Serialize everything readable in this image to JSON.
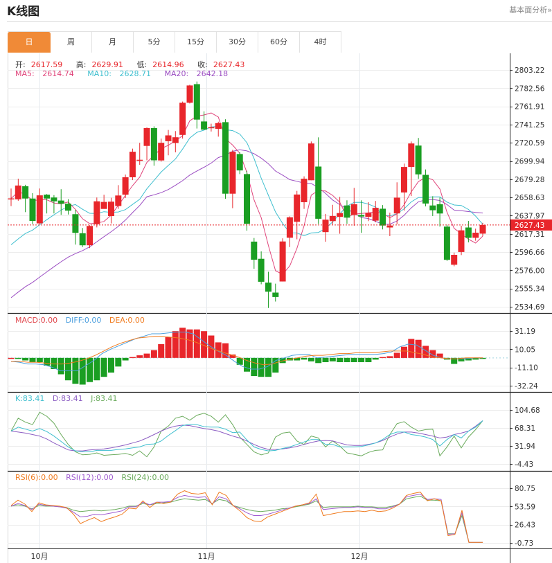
{
  "header": {
    "title": "K线图",
    "fundamental_link": "基本面分析»"
  },
  "tabs": [
    {
      "label": "日",
      "active": true
    },
    {
      "label": "周",
      "active": false
    },
    {
      "label": "月",
      "active": false
    },
    {
      "label": "5分",
      "active": false
    },
    {
      "label": "15分",
      "active": false
    },
    {
      "label": "30分",
      "active": false
    },
    {
      "label": "60分",
      "active": false
    },
    {
      "label": "4时",
      "active": false
    }
  ],
  "ohlc": {
    "open_label": "开:",
    "open": "2617.59",
    "high_label": "高:",
    "high": "2629.91",
    "low_label": "低:",
    "low": "2614.96",
    "close_label": "收:",
    "close": "2627.43"
  },
  "ma_legend": {
    "ma5_label": "MA5:",
    "ma5": "2614.74",
    "ma10_label": "MA10:",
    "ma10": "2628.71",
    "ma20_label": "MA20:",
    "ma20": "2642.18"
  },
  "macd_legend": {
    "macd": "MACD:0.00",
    "diff": "DIFF:0.00",
    "dea": "DEA:0.00"
  },
  "kdj_legend": {
    "k": "K:83.41",
    "d": "D:83.41",
    "j": "J:83.41"
  },
  "rsi_legend": {
    "rsi6": "RSI(6):0.00",
    "rsi12": "RSI(12):0.00",
    "rsi24": "RSI(24):0.00"
  },
  "colors": {
    "up": "#e8262b",
    "down": "#1a9e22",
    "ma5": "#e0457b",
    "ma10": "#3fbfcf",
    "ma20": "#9b4dc2",
    "macd_label": "#e0454b",
    "diff": "#4a9ede",
    "dea": "#f07b1f",
    "k": "#3fbfcf",
    "d": "#8b5cc2",
    "j": "#6aab5c",
    "rsi6": "#f07b1f",
    "rsi12": "#a05cd0",
    "rsi24": "#6aab5c",
    "tab_active": "#f08a37",
    "price_tag": "#e8262b"
  },
  "chart_data": [
    {
      "type": "candlestick",
      "title": "K线图 (日)",
      "xlabel": "",
      "ylabel": "",
      "x_ticks": [
        "10月",
        "11月",
        "12月"
      ],
      "y_ticks": [
        2803.22,
        2782.56,
        2761.91,
        2741.25,
        2720.59,
        2699.94,
        2679.28,
        2658.63,
        2637.97,
        2617.31,
        2596.66,
        2576.0,
        2555.34,
        2534.69
      ],
      "ylim": [
        2528,
        2810
      ],
      "current_price": 2627.43,
      "candles": [
        [
          2656.6,
          2657.6,
          2668.8,
          2648.8
        ],
        [
          2656.6,
          2672.2,
          2679.9,
          2654.9
        ],
        [
          2671.4,
          2657.4,
          2673.0,
          2642.0
        ],
        [
          2657.4,
          2632.0,
          2663.5,
          2628.4
        ],
        [
          2629.2,
          2661.0,
          2668.8,
          2628.4
        ],
        [
          2661.8,
          2657.4,
          2662.5,
          2640.5
        ],
        [
          2658.6,
          2654.3,
          2661.3,
          2640.5
        ],
        [
          2655.1,
          2651.6,
          2668.0,
          2638.9
        ],
        [
          2651.6,
          2643.7,
          2656.7,
          2639.3
        ],
        [
          2639.7,
          2618.5,
          2644.5,
          2605.2
        ],
        [
          2618.1,
          2604.4,
          2624.0,
          2602.4
        ],
        [
          2604.4,
          2626.3,
          2627.1,
          2601.2
        ],
        [
          2628.3,
          2654.3,
          2658.6,
          2624.7
        ],
        [
          2645.7,
          2653.6,
          2661.7,
          2646.9
        ],
        [
          2637.6,
          2653.9,
          2658.3,
          2629.2
        ],
        [
          2649.0,
          2660.9,
          2672.6,
          2645.7
        ],
        [
          2661.8,
          2681.5,
          2684.6,
          2658.0
        ],
        [
          2681.5,
          2710.5,
          2714.0,
          2678.3
        ],
        [
          2701.4,
          2701.4,
          2720.6,
          2695.7
        ],
        [
          2717.1,
          2737.3,
          2738.1,
          2700.8
        ],
        [
          2737.3,
          2700.8,
          2739.3,
          2694.6
        ],
        [
          2700.6,
          2720.6,
          2725.4,
          2699.3
        ],
        [
          2722.4,
          2729.0,
          2735.2,
          2706.4
        ],
        [
          2720.4,
          2726.9,
          2733.9,
          2709.8
        ],
        [
          2729.6,
          2766.0,
          2767.4,
          2725.4
        ],
        [
          2766.0,
          2785.6,
          2786.4,
          2765.2
        ],
        [
          2787.1,
          2746.9,
          2790.1,
          2736.8
        ],
        [
          2744.8,
          2735.5,
          2756.3,
          2735.3
        ],
        [
          2738.3,
          2738.3,
          2742.3,
          2733.4
        ],
        [
          2736.5,
          2742.9,
          2744.5,
          2727.6
        ],
        [
          2744.0,
          2662.9,
          2747.3,
          2657.2
        ],
        [
          2662.9,
          2710.5,
          2712.6,
          2646.5
        ],
        [
          2707.9,
          2689.3,
          2709.8,
          2685.1
        ],
        [
          2685.1,
          2628.7,
          2688.8,
          2621.0
        ],
        [
          2608.6,
          2588.1,
          2612.7,
          2577.7
        ],
        [
          2589.1,
          2563.0,
          2597.5,
          2560.2
        ],
        [
          2562.1,
          2551.8,
          2574.4,
          2533.3
        ],
        [
          2550.8,
          2545.8,
          2560.9,
          2540.6
        ],
        [
          2563.3,
          2608.7,
          2612.3,
          2563.3
        ],
        [
          2612.9,
          2636.1,
          2637.2,
          2602.4
        ],
        [
          2631.1,
          2662.0,
          2666.1,
          2611.2
        ],
        [
          2653.3,
          2679.9,
          2682.6,
          2645.7
        ],
        [
          2678.1,
          2719.8,
          2722.1,
          2678.1
        ],
        [
          2693.7,
          2634.5,
          2726.8,
          2628.5
        ],
        [
          2619.4,
          2633.5,
          2640.0,
          2608.5
        ],
        [
          2631.8,
          2637.6,
          2650.3,
          2628.0
        ],
        [
          2636.6,
          2640.9,
          2659.3,
          2617.5
        ],
        [
          2649.6,
          2635.8,
          2655.4,
          2628.7
        ],
        [
          2638.8,
          2651.0,
          2669.5,
          2626.6
        ],
        [
          2638.8,
          2637.0,
          2655.4,
          2618.5
        ],
        [
          2636.6,
          2641.1,
          2653.3,
          2631.8
        ],
        [
          2632.4,
          2646.9,
          2654.7,
          2630.5
        ],
        [
          2645.9,
          2626.8,
          2650.0,
          2622.4
        ],
        [
          2624.6,
          2626.8,
          2641.4,
          2614.8
        ],
        [
          2640.5,
          2658.4,
          2675.8,
          2628.2
        ],
        [
          2664.3,
          2693.2,
          2697.0,
          2643.7
        ],
        [
          2693.2,
          2719.8,
          2722.1,
          2660.2
        ],
        [
          2717.5,
          2684.8,
          2726.1,
          2679.7
        ],
        [
          2684.3,
          2651.8,
          2690.4,
          2648.5
        ],
        [
          2649.6,
          2644.2,
          2660.0,
          2637.6
        ],
        [
          2651.0,
          2640.5,
          2658.6,
          2625.6
        ],
        [
          2625.6,
          2587.9,
          2627.8,
          2586.7
        ],
        [
          2582.4,
          2593.6,
          2596.1,
          2580.6
        ],
        [
          2596.8,
          2621.4,
          2626.6,
          2593.3
        ],
        [
          2624.6,
          2612.9,
          2632.0,
          2607.7
        ],
        [
          2612.9,
          2618.7,
          2623.3,
          2609.6
        ],
        [
          2617.6,
          2627.4,
          2629.9,
          2614.9
        ]
      ],
      "series": [
        {
          "name": "MA5",
          "values_px_note": "rendered"
        },
        {
          "name": "MA10"
        },
        {
          "name": "MA20"
        }
      ],
      "legend": [
        "MA5: 2614.74",
        "MA10: 2628.71",
        "MA20: 2642.18"
      ]
    },
    {
      "type": "bar",
      "title": "MACD",
      "y_ticks": [
        31.19,
        10.05,
        -11.1,
        -32.24
      ],
      "legend": [
        "MACD:0.00",
        "DIFF:0.00",
        "DEA:0.00"
      ],
      "macd_bars": [
        0,
        -1,
        -3,
        -5,
        -5,
        -9,
        -13,
        -19,
        -26,
        -30,
        -31,
        -28,
        -26,
        -22,
        -17,
        -10,
        -3,
        1,
        3,
        5,
        9,
        16,
        24,
        31,
        35,
        33,
        33,
        31,
        26,
        18,
        17,
        4,
        -8,
        -16,
        -21,
        -22,
        -22,
        -17,
        -6,
        -3,
        -3,
        -2,
        -4,
        -6,
        -5,
        -4,
        -5,
        -5,
        -5,
        -5,
        -5,
        -2,
        1,
        2,
        6,
        13,
        22,
        21,
        14,
        9,
        5,
        -2,
        -7,
        -4,
        -3,
        -2,
        -1
      ],
      "diff": [
        -4,
        -5,
        -7,
        -7,
        -8,
        -11,
        -15,
        -15,
        -15,
        -9,
        -3,
        5,
        10,
        14,
        18,
        22,
        25,
        28,
        28,
        29,
        30,
        30,
        28,
        21,
        14,
        8,
        3,
        -4,
        -10,
        -13,
        -13,
        -10,
        -3,
        0,
        3,
        4,
        4,
        0,
        1,
        2,
        3,
        4,
        4,
        4,
        4,
        5,
        7,
        13,
        16,
        15,
        9,
        3,
        0,
        -1,
        -1,
        -1,
        0,
        0
      ],
      "dea": [
        -4,
        -4,
        -5,
        -5,
        -6,
        -7,
        -7,
        -6,
        -4,
        -1,
        3,
        8,
        13,
        17,
        20,
        23,
        24,
        25,
        25,
        24,
        23,
        21,
        18,
        14,
        10,
        7,
        4,
        1,
        -3,
        -6,
        -8,
        -7,
        -4,
        -2,
        0,
        2,
        3,
        3,
        4,
        5,
        5,
        6,
        6,
        6,
        7,
        8,
        8,
        8,
        6,
        4,
        1,
        0,
        -1,
        -1,
        0,
        0,
        0
      ]
    },
    {
      "type": "line",
      "title": "KDJ",
      "y_ticks": [
        104.68,
        68.31,
        31.94,
        -4.43
      ],
      "legend": [
        "K:83.41",
        "D:83.41",
        "J:83.41"
      ]
    },
    {
      "type": "line",
      "title": "RSI",
      "y_ticks": [
        80.75,
        53.59,
        26.43,
        -0.73
      ],
      "x_ticks": [
        "10月",
        "11月",
        "12月"
      ],
      "legend": [
        "RSI(6):0.00",
        "RSI(12):0.00",
        "RSI(24):0.00"
      ]
    }
  ],
  "axis_labels": {
    "price": [
      "2803.22",
      "2782.56",
      "2761.91",
      "2741.25",
      "2720.59",
      "2699.94",
      "2679.28",
      "2658.63",
      "2637.97",
      "2617.31",
      "2596.66",
      "2576.00",
      "2555.34",
      "2534.69"
    ],
    "price_tag": "2627.43",
    "macd": [
      "31.19",
      "10.05",
      "-11.10",
      "-32.24"
    ],
    "kdj": [
      "104.68",
      "68.31",
      "31.94",
      "-4.43"
    ],
    "rsi": [
      "80.75",
      "53.59",
      "26.43",
      "-0.73"
    ],
    "months": [
      "10月",
      "11月",
      "12月"
    ]
  }
}
